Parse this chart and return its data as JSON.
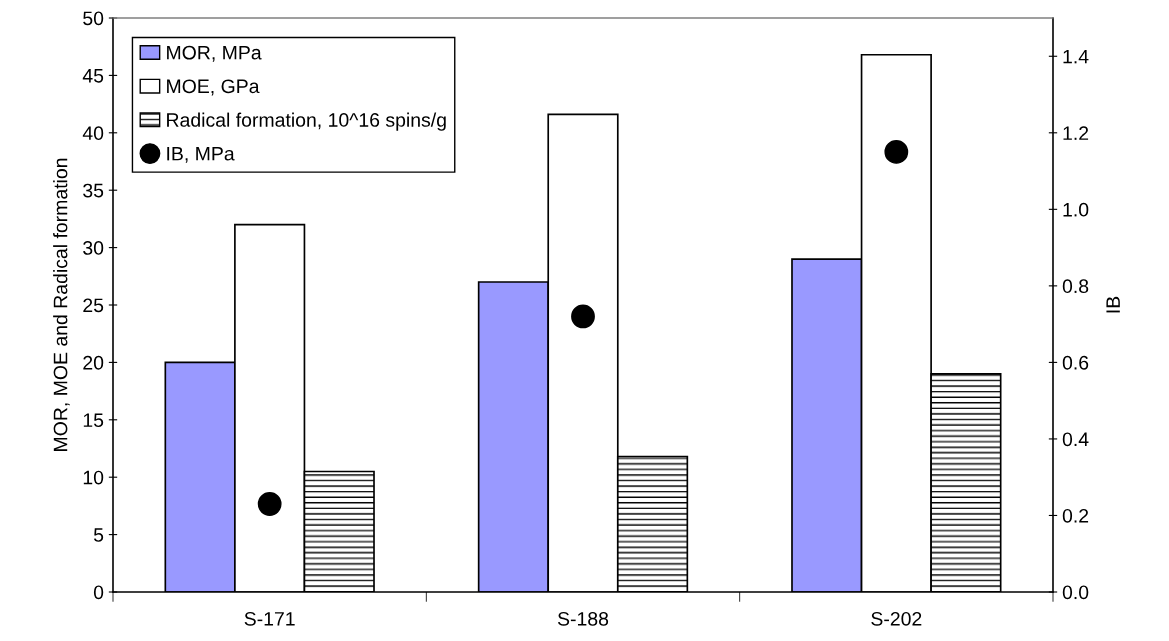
{
  "chart_data": {
    "type": "bar",
    "ylabel": "MOR, MOE and Radical formation",
    "y2label": "IB",
    "categories": [
      "S-171",
      "S-188",
      "S-202"
    ],
    "series": [
      {
        "name": "MOR, MPa",
        "color": "#9999ff",
        "values": [
          20,
          27,
          29
        ]
      },
      {
        "name": "MOE, GPa",
        "color": "#ffffff",
        "values": [
          32,
          41.6,
          46.8
        ]
      },
      {
        "name": "Radical formation, 10^16 spins/g",
        "color": "#000000",
        "values": [
          10.5,
          11.8,
          19
        ]
      },
      {
        "name": "IB, MPa",
        "type": "scatter",
        "axis": "y2",
        "color": "#000000",
        "x": [
          "S-171",
          "S-188",
          "S-202"
        ],
        "values": [
          0.23,
          0.72,
          1.15
        ]
      }
    ],
    "ylim": [
      0,
      50
    ],
    "yticks": [
      0,
      5,
      10,
      15,
      20,
      25,
      30,
      35,
      40,
      45,
      50
    ],
    "y2lim": [
      0,
      1.5
    ],
    "y2ticks": [
      {
        "value": 0,
        "label": "0.0"
      },
      0.2,
      0.4,
      0.6,
      0.8,
      {
        "value": 1.0,
        "label": "1.0"
      },
      1.2,
      1.4
    ],
    "marker": "circle",
    "grid": false,
    "legend": "top left"
  }
}
